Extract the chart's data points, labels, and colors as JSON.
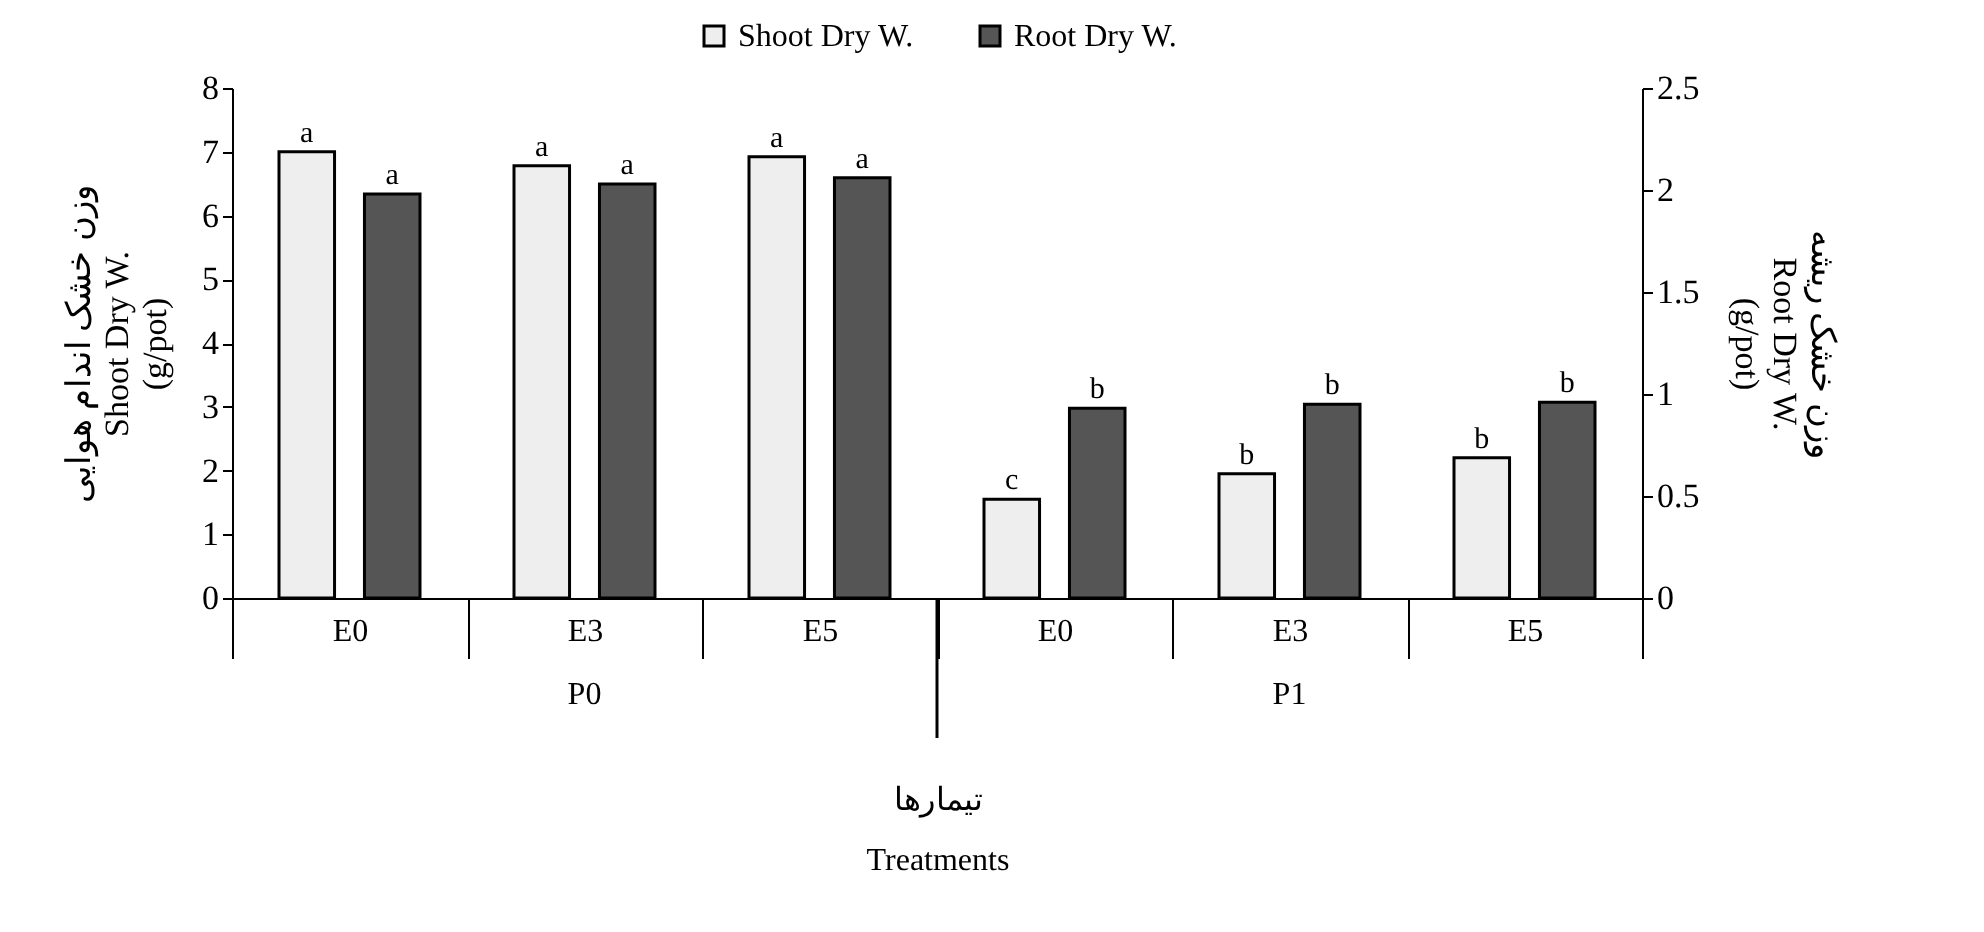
{
  "chart_data": {
    "type": "bar",
    "xlabel": "تیمارها\nTreatments",
    "ylabel": "وزن خشک اندام هوایی\nShoot Dry W.\n(g/pot)",
    "y2label": "وزن خشک ریشه\nRoot Dry W.\n(g/pot)",
    "categories": [
      "E0",
      "E3",
      "E5",
      "E0",
      "E3",
      "E5"
    ],
    "annotations": [
      "P0",
      "P1"
    ],
    "series": [
      {
        "name": "Shoot Dry W.",
        "color": "#eeeeee",
        "values": [
          7.0,
          6.78,
          6.92,
          1.55,
          1.95,
          2.2
        ],
        "value_labels": [
          "a",
          "a",
          "a",
          "c",
          "b",
          "b"
        ]
      },
      {
        "name": "Root Dry W.",
        "color": "#555555",
        "axis": "y2",
        "values": [
          1.98,
          2.03,
          2.06,
          0.93,
          0.95,
          0.96
        ],
        "value_labels": [
          "a",
          "a",
          "a",
          "b",
          "b",
          "b"
        ]
      }
    ],
    "ylim": [
      0,
      8
    ],
    "yticks": [
      0,
      1,
      2,
      3,
      4,
      5,
      6,
      7,
      8
    ],
    "y2lim": [
      0,
      2.5
    ],
    "y2ticks": [
      0,
      0.5,
      1,
      1.5,
      2,
      2.5
    ],
    "grid": false,
    "legend": "top"
  }
}
